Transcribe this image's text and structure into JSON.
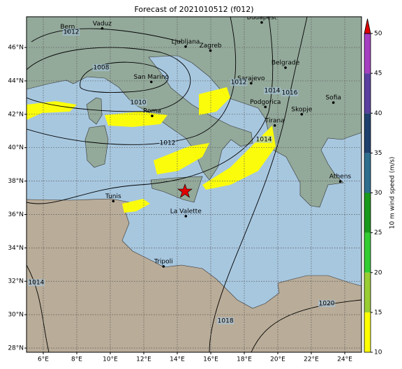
{
  "title": "Forecast of 2021010512 (f012)",
  "map": {
    "lon_lim": [
      5,
      25
    ],
    "lat_lim": [
      27.75,
      47.84
    ],
    "lon_ticks": [
      {
        "value": 6,
        "label": "6°E"
      },
      {
        "value": 8,
        "label": "8°E"
      },
      {
        "value": 10,
        "label": "10°E"
      },
      {
        "value": 12,
        "label": "12°E"
      },
      {
        "value": 14,
        "label": "14°E"
      },
      {
        "value": 16,
        "label": "16°E"
      },
      {
        "value": 18,
        "label": "18°E"
      },
      {
        "value": 20,
        "label": "20°E"
      },
      {
        "value": 22,
        "label": "22°E"
      },
      {
        "value": 24,
        "label": "24°E"
      }
    ],
    "lat_ticks": [
      {
        "value": 28,
        "label": "28°N"
      },
      {
        "value": 30,
        "label": "30°N"
      },
      {
        "value": 32,
        "label": "32°N"
      },
      {
        "value": 34,
        "label": "34°N"
      },
      {
        "value": 36,
        "label": "36°N"
      },
      {
        "value": 38,
        "label": "38°N"
      },
      {
        "value": 40,
        "label": "40°N"
      },
      {
        "value": 42,
        "label": "42°N"
      },
      {
        "value": 44,
        "label": "44°N"
      },
      {
        "value": 46,
        "label": "46°N"
      }
    ],
    "grid": true,
    "cities": [
      {
        "name": "Bern",
        "lon": 7.45,
        "lat": 46.95
      },
      {
        "name": "Vaduz",
        "lon": 9.52,
        "lat": 47.14
      },
      {
        "name": "Budapest",
        "lon": 19.04,
        "lat": 47.5
      },
      {
        "name": "Ljubljana",
        "lon": 14.5,
        "lat": 46.05
      },
      {
        "name": "Zagreb",
        "lon": 15.98,
        "lat": 45.81
      },
      {
        "name": "Belgrade",
        "lon": 20.46,
        "lat": 44.79
      },
      {
        "name": "Sarajevo",
        "lon": 18.41,
        "lat": 43.86
      },
      {
        "name": "San Marino",
        "lon": 12.45,
        "lat": 43.94
      },
      {
        "name": "Roma",
        "lon": 12.5,
        "lat": 41.9
      },
      {
        "name": "Podgorica",
        "lon": 19.26,
        "lat": 42.44
      },
      {
        "name": "Sofia",
        "lon": 23.32,
        "lat": 42.7
      },
      {
        "name": "Skopje",
        "lon": 21.43,
        "lat": 42.0
      },
      {
        "name": "Tirana",
        "lon": 19.82,
        "lat": 41.33
      },
      {
        "name": "Athens",
        "lon": 23.73,
        "lat": 37.98
      },
      {
        "name": "Tunis",
        "lon": 10.18,
        "lat": 36.8
      },
      {
        "name": "La Valette",
        "lon": 14.51,
        "lat": 35.9
      },
      {
        "name": "Tripoli",
        "lon": 13.18,
        "lat": 32.89
      }
    ],
    "isobar_labels": [
      {
        "value": 1012,
        "lon": 7.67,
        "lat": 46.92
      },
      {
        "value": 1008,
        "lon": 9.46,
        "lat": 44.79
      },
      {
        "value": 1010,
        "lon": 11.67,
        "lat": 42.7
      },
      {
        "value": 1012,
        "lon": 13.42,
        "lat": 40.28
      },
      {
        "value": 1012,
        "lon": 17.67,
        "lat": 43.91
      },
      {
        "value": 1014,
        "lon": 19.67,
        "lat": 43.41
      },
      {
        "value": 1016,
        "lon": 20.71,
        "lat": 43.28
      },
      {
        "value": 1014,
        "lon": 19.17,
        "lat": 40.49
      },
      {
        "value": 1014,
        "lon": 5.58,
        "lat": 31.92
      },
      {
        "value": 1018,
        "lon": 16.88,
        "lat": 29.63
      },
      {
        "value": 1020,
        "lon": 22.92,
        "lat": 30.67
      }
    ]
  },
  "colorbar": {
    "label": "10 m wind speed (m/s)",
    "lim": [
      10,
      50
    ],
    "ticks": [
      10,
      15,
      20,
      25,
      30,
      35,
      40,
      45,
      50
    ],
    "colors": [
      "#ffff00",
      "#9acd32",
      "#32cd32",
      "#1a9a1a",
      "#2e6f8e",
      "#1f3f6e",
      "#5a3fa0",
      "#a53fc0"
    ],
    "extend_color": "#e00000"
  }
}
